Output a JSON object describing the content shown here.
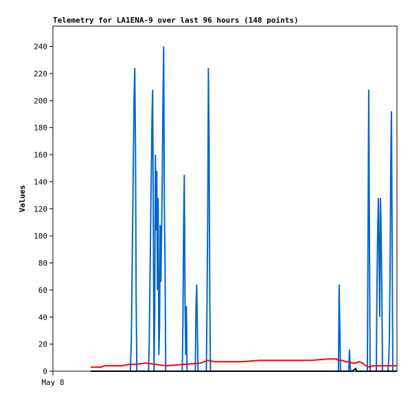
{
  "chart_data": {
    "type": "line",
    "title": "Telemetry for LA1ENA-9 over last 96 hours (148 points)",
    "ylabel": "Values",
    "xlabel": "",
    "x_tick_labels": [
      "May 8"
    ],
    "y_ticks": [
      0,
      20,
      40,
      60,
      80,
      100,
      120,
      140,
      160,
      180,
      200,
      220,
      240
    ],
    "ylim": [
      0,
      255
    ],
    "xlim": [
      0,
      100
    ],
    "grid": false,
    "legend": "none",
    "series": [
      {
        "color": "#0066cc",
        "points": [
          [
            22.5,
            0
          ],
          [
            22.8,
            22
          ],
          [
            23.0,
            66
          ],
          [
            23.2,
            112
          ],
          [
            23.4,
            158
          ],
          [
            23.6,
            202
          ],
          [
            23.8,
            224
          ],
          [
            24.0,
            168
          ],
          [
            24.2,
            56
          ],
          [
            24.4,
            0
          ],
          [
            27.8,
            0
          ],
          [
            28.0,
            20
          ],
          [
            28.2,
            62
          ],
          [
            28.4,
            104
          ],
          [
            28.6,
            146
          ],
          [
            28.8,
            187
          ],
          [
            29.0,
            208
          ],
          [
            29.2,
            104
          ],
          [
            29.4,
            0
          ],
          [
            29.6,
            44
          ],
          [
            29.8,
            160
          ],
          [
            30.0,
            104
          ],
          [
            30.2,
            148
          ],
          [
            30.4,
            60
          ],
          [
            30.6,
            128
          ],
          [
            30.8,
            12
          ],
          [
            31.0,
            32
          ],
          [
            31.2,
            108
          ],
          [
            31.4,
            66
          ],
          [
            31.6,
            104
          ],
          [
            31.8,
            145
          ],
          [
            32.0,
            200
          ],
          [
            32.2,
            240
          ],
          [
            32.4,
            120
          ],
          [
            32.6,
            80
          ],
          [
            32.8,
            0
          ],
          [
            37.6,
            0
          ],
          [
            37.8,
            36
          ],
          [
            38.0,
            108
          ],
          [
            38.2,
            145
          ],
          [
            38.4,
            56
          ],
          [
            38.6,
            12
          ],
          [
            38.8,
            48
          ],
          [
            39.0,
            0
          ],
          [
            41.4,
            0
          ],
          [
            41.6,
            48
          ],
          [
            41.8,
            64
          ],
          [
            42.0,
            30
          ],
          [
            42.2,
            0
          ],
          [
            44.6,
            0
          ],
          [
            44.8,
            50
          ],
          [
            45.0,
            112
          ],
          [
            45.2,
            224
          ],
          [
            45.4,
            168
          ],
          [
            45.6,
            56
          ],
          [
            45.8,
            0
          ],
          [
            83.0,
            0
          ],
          [
            83.2,
            64
          ],
          [
            83.4,
            32
          ],
          [
            83.6,
            0
          ],
          [
            86.0,
            0
          ],
          [
            86.2,
            16
          ],
          [
            86.4,
            4
          ],
          [
            86.6,
            0
          ],
          [
            91.4,
            0
          ],
          [
            91.6,
            104
          ],
          [
            91.8,
            208
          ],
          [
            92.0,
            104
          ],
          [
            92.2,
            0
          ],
          [
            94.0,
            0
          ],
          [
            94.2,
            64
          ],
          [
            94.4,
            104
          ],
          [
            94.6,
            128
          ],
          [
            94.8,
            84
          ],
          [
            95.0,
            40
          ],
          [
            95.2,
            128
          ],
          [
            95.4,
            104
          ],
          [
            95.6,
            60
          ],
          [
            95.8,
            0
          ],
          [
            97.4,
            0
          ],
          [
            97.6,
            8
          ],
          [
            97.8,
            24
          ],
          [
            98.0,
            72
          ],
          [
            98.2,
            152
          ],
          [
            98.4,
            192
          ],
          [
            98.6,
            96
          ],
          [
            98.8,
            0
          ]
        ]
      },
      {
        "color": "#ff0000",
        "points": [
          [
            11.0,
            3
          ],
          [
            14.0,
            3
          ],
          [
            15.0,
            4
          ],
          [
            20.0,
            4
          ],
          [
            22.0,
            5
          ],
          [
            24.0,
            5
          ],
          [
            27.0,
            6
          ],
          [
            30.0,
            5
          ],
          [
            33.0,
            4
          ],
          [
            38.0,
            5
          ],
          [
            43.0,
            6
          ],
          [
            45.0,
            8
          ],
          [
            47.0,
            7
          ],
          [
            50.0,
            7
          ],
          [
            55.0,
            7
          ],
          [
            60.0,
            8
          ],
          [
            65.0,
            8
          ],
          [
            70.0,
            8
          ],
          [
            75.0,
            8
          ],
          [
            80.0,
            9
          ],
          [
            82.0,
            9
          ],
          [
            82.5,
            9
          ],
          [
            83.0,
            8
          ],
          [
            84.0,
            8
          ],
          [
            85.0,
            7
          ],
          [
            86.0,
            7
          ],
          [
            87.0,
            6
          ],
          [
            88.0,
            6
          ],
          [
            89.0,
            7
          ],
          [
            90.0,
            6
          ],
          [
            91.0,
            4
          ],
          [
            92.0,
            3
          ],
          [
            93.0,
            4
          ],
          [
            94.0,
            4
          ],
          [
            95.0,
            4
          ],
          [
            96.0,
            4
          ],
          [
            97.0,
            4
          ],
          [
            98.0,
            4
          ],
          [
            99.0,
            4
          ],
          [
            100.0,
            4
          ]
        ]
      },
      {
        "color": "#000000",
        "points": [
          [
            11.0,
            0
          ],
          [
            24.0,
            0
          ],
          [
            50.0,
            0
          ],
          [
            85.0,
            0
          ],
          [
            87.0,
            0
          ],
          [
            88.0,
            2
          ],
          [
            88.3,
            0
          ],
          [
            89.0,
            0
          ],
          [
            92.0,
            0
          ],
          [
            100.0,
            0
          ]
        ]
      }
    ]
  }
}
